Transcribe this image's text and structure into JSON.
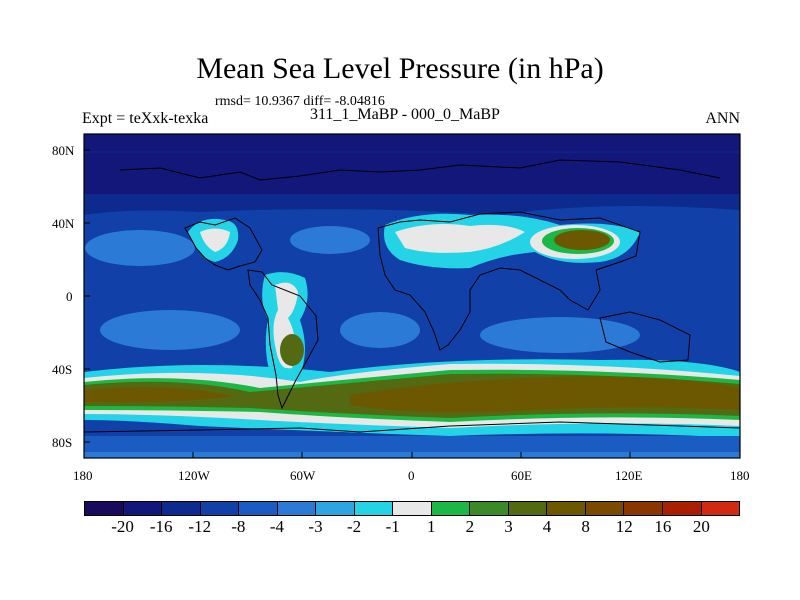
{
  "title": "Mean Sea Level Pressure (in hPa)",
  "stats": "rmsd= 10.9367 diff= -8.04816",
  "experiment": "Expt = teXxk-texka",
  "difference_label": "311_1_MaBP - 000_0_MaBP",
  "season": "ANN",
  "lat_ticks": [
    "80N",
    "40N",
    "0",
    "40S",
    "80S"
  ],
  "lon_ticks": [
    "180",
    "120W",
    "60W",
    "0",
    "60E",
    "120E",
    "180"
  ],
  "colorbar": {
    "colors": [
      "#1a0a5c",
      "#13177a",
      "#0d2a8e",
      "#1040a8",
      "#1a5cc2",
      "#2a7ad6",
      "#2ea5e0",
      "#24d4e6",
      "#e8e8e8",
      "#1cb845",
      "#3c8a26",
      "#546a12",
      "#6c5800",
      "#7a4a00",
      "#8a3600",
      "#a82000",
      "#d02a10"
    ],
    "labels": [
      "-20",
      "-16",
      "-12",
      "-8",
      "-4",
      "-3",
      "-2",
      "-1",
      "1",
      "2",
      "3",
      "4",
      "8",
      "12",
      "16",
      "20"
    ]
  },
  "map_colors": {
    "ocean_base": "#1040a8",
    "polar_dark": "#13177a",
    "band_light": "#2a7ad6",
    "band_cyan": "#24d4e6",
    "band_white": "#e8e8e8",
    "band_green": "#1cb845",
    "band_olive": "#546a12",
    "band_brown": "#6c5800",
    "land_outline": "#000000"
  }
}
